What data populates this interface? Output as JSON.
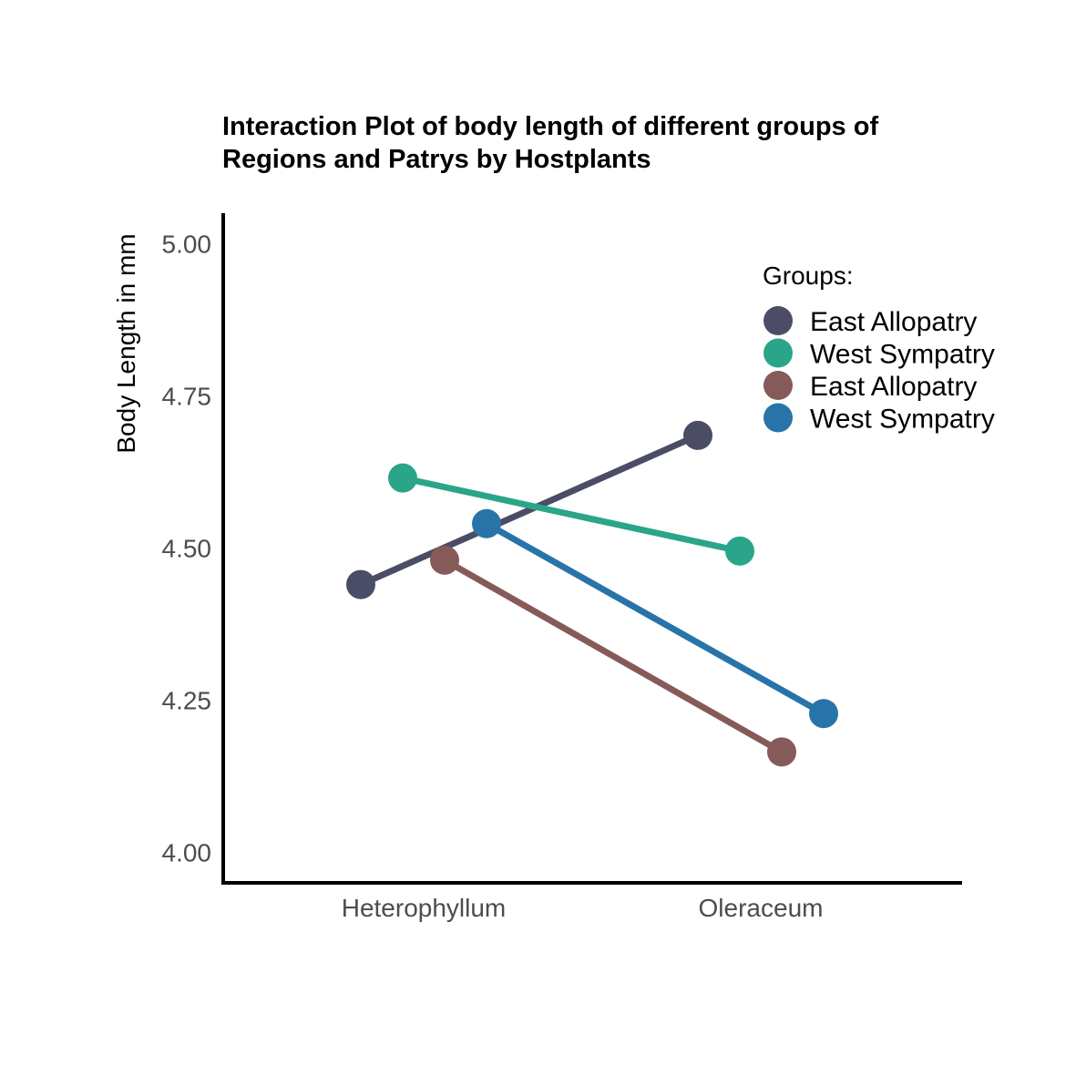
{
  "chart_data": {
    "type": "line",
    "title": "Interaction Plot of body length of different groups of Regions and Patrys by Hostplants",
    "title_lines": [
      "Interaction Plot of body length of different groups of",
      "Regions and Patrys by Hostplants"
    ],
    "xlabel": "",
    "ylabel": "Body Length in mm",
    "categories": [
      "Heterophyllum",
      "Oleraceum"
    ],
    "ylim": [
      3.95,
      5.05
    ],
    "yticks": [
      "4.00",
      "4.25",
      "4.50",
      "4.75",
      "5.00"
    ],
    "ytick_values": [
      4.0,
      4.25,
      4.5,
      4.75,
      5.0
    ],
    "grid": false,
    "legend": {
      "title": "Groups:",
      "placement": "top-right"
    },
    "series": [
      {
        "name": "East Allopatry",
        "color": "#4b4d66",
        "values": [
          4.44,
          4.685
        ]
      },
      {
        "name": "West Sympatry",
        "color": "#2aa58a",
        "values": [
          4.615,
          4.495
        ]
      },
      {
        "name": "East Allopatry",
        "color": "#875a5a",
        "values": [
          4.48,
          4.165
        ]
      },
      {
        "name": "West Sympatry",
        "color": "#2874a8",
        "values": [
          4.54,
          4.228
        ]
      }
    ]
  }
}
